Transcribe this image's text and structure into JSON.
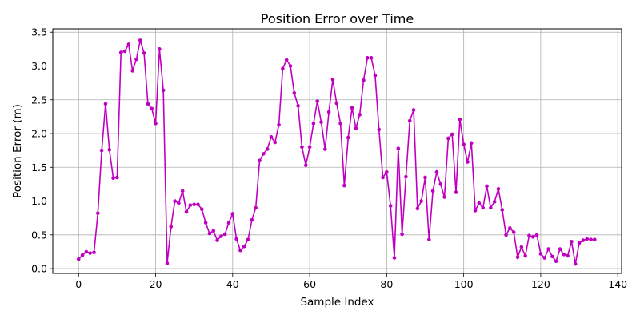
{
  "chart_data": {
    "type": "line",
    "title": "Position Error over Time",
    "xlabel": "Sample Index",
    "ylabel": "Position Error (m)",
    "xlim": [
      -6.7,
      141
    ],
    "ylim": [
      -0.07,
      3.55
    ],
    "x_ticks": [
      0,
      20,
      40,
      60,
      80,
      100,
      120,
      140
    ],
    "y_ticks": [
      0.0,
      0.5,
      1.0,
      1.5,
      2.0,
      2.5,
      3.0,
      3.5
    ],
    "x_tick_labels": [
      "0",
      "20",
      "40",
      "60",
      "80",
      "100",
      "120",
      "140"
    ],
    "y_tick_labels": [
      "0.0",
      "0.5",
      "1.0",
      "1.5",
      "2.0",
      "2.5",
      "3.0",
      "3.5"
    ],
    "grid": true,
    "color": "#c000c0",
    "marker": "circle",
    "series": [
      {
        "x": [
          0,
          1,
          2,
          3,
          4,
          5,
          6,
          7,
          8,
          9,
          10,
          11,
          12,
          13,
          14,
          15,
          16,
          17,
          18,
          19,
          20,
          21,
          22,
          23,
          24,
          25,
          26,
          27,
          28,
          29,
          30,
          31,
          32,
          33,
          34,
          35,
          36,
          37,
          38,
          39,
          40,
          41,
          42,
          43,
          44,
          45,
          46,
          47,
          48,
          49,
          50,
          51,
          52,
          53,
          54,
          55,
          56,
          57,
          58,
          59,
          60,
          61,
          62,
          63,
          64,
          65,
          66,
          67,
          68,
          69,
          70,
          71,
          72,
          73,
          74,
          75,
          76,
          77,
          78,
          79,
          80,
          81,
          82,
          83,
          84,
          85,
          86,
          87,
          88,
          89,
          90,
          91,
          92,
          93,
          94,
          95,
          96,
          97,
          98,
          99,
          100,
          101,
          102,
          103,
          104,
          105,
          106,
          107,
          108,
          109,
          110,
          111,
          112,
          113,
          114,
          115,
          116,
          117,
          118,
          119,
          120,
          121,
          122,
          123,
          124,
          125,
          126,
          127,
          128,
          129,
          130,
          131,
          132,
          133,
          134
        ],
        "values": [
          0.14,
          0.2,
          0.25,
          0.23,
          0.24,
          0.82,
          1.75,
          2.44,
          1.76,
          1.34,
          1.35,
          3.2,
          3.22,
          3.32,
          2.93,
          3.1,
          3.38,
          3.19,
          2.44,
          2.37,
          2.15,
          3.25,
          2.64,
          0.08,
          0.62,
          1.0,
          0.97,
          1.15,
          0.84,
          0.94,
          0.95,
          0.95,
          0.88,
          0.68,
          0.52,
          0.56,
          0.42,
          0.48,
          0.51,
          0.68,
          0.81,
          0.44,
          0.27,
          0.33,
          0.43,
          0.72,
          0.9,
          1.6,
          1.7,
          1.77,
          1.95,
          1.87,
          2.13,
          2.96,
          3.09,
          3.0,
          2.6,
          2.41,
          1.8,
          1.53,
          1.8,
          2.15,
          2.48,
          2.17,
          1.77,
          2.32,
          2.8,
          2.45,
          2.15,
          1.23,
          1.94,
          2.38,
          2.08,
          2.28,
          2.79,
          3.12,
          3.12,
          2.86,
          2.06,
          1.35,
          1.43,
          0.93,
          0.16,
          1.78,
          0.51,
          1.36,
          2.19,
          2.35,
          0.89,
          1.0,
          1.35,
          0.43,
          1.15,
          1.43,
          1.25,
          1.06,
          1.93,
          1.99,
          1.13,
          2.21,
          1.84,
          1.58,
          1.86,
          0.86,
          0.97,
          0.9,
          1.22,
          0.9,
          0.99,
          1.18,
          0.87,
          0.5,
          0.6,
          0.54,
          0.17,
          0.32,
          0.19,
          0.49,
          0.47,
          0.5,
          0.22,
          0.16,
          0.29,
          0.18,
          0.11,
          0.29,
          0.21,
          0.19,
          0.4,
          0.07,
          0.38,
          0.42,
          0.44,
          0.43,
          0.43
        ]
      }
    ]
  }
}
